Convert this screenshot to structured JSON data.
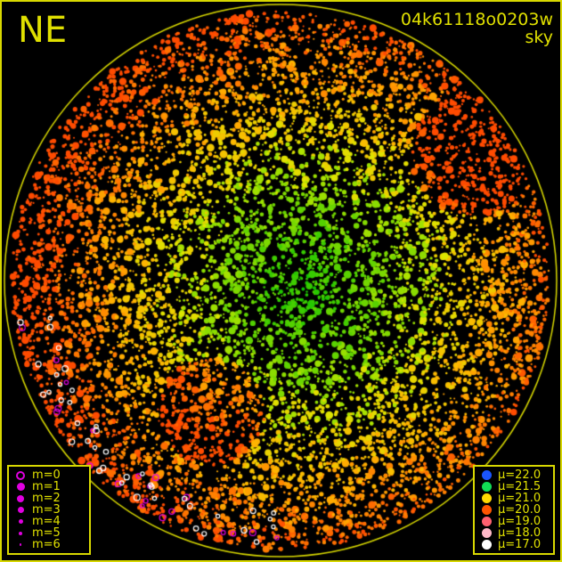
{
  "header": {
    "direction": "NE",
    "frame_id": "04k61118o0203w",
    "mode": "sky"
  },
  "colors": {
    "frame": "#d8d800",
    "text": "#e0e000",
    "background": "#000000",
    "magnitude_symbol": "#e000e0"
  },
  "magnitude_legend": [
    {
      "label": "m=0",
      "symbol": "open-circle"
    },
    {
      "label": "m=1",
      "symbol": "filled-circle"
    },
    {
      "label": "m=2",
      "symbol": "filled-circle"
    },
    {
      "label": "m=3",
      "symbol": "filled-circle"
    },
    {
      "label": "m=4",
      "symbol": "filled-circle"
    },
    {
      "label": "m=5",
      "symbol": "filled-circle"
    },
    {
      "label": "m=6",
      "symbol": "filled-circle"
    }
  ],
  "brightness_legend": [
    {
      "label": "μ=22.0",
      "color": "#1a55ff"
    },
    {
      "label": "μ=21.5",
      "color": "#11dd55"
    },
    {
      "label": "μ=21.0",
      "color": "#ffd800"
    },
    {
      "label": "μ=20.0",
      "color": "#ff5500"
    },
    {
      "label": "μ=19.0",
      "color": "#ff6070"
    },
    {
      "label": "μ=18.0",
      "color": "#ffb8c8"
    },
    {
      "label": "μ=17.0",
      "color": "#ffffff"
    }
  ]
}
